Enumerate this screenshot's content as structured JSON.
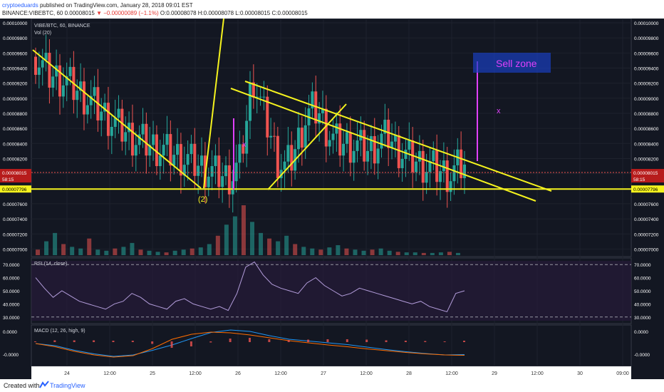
{
  "header": {
    "author": "cryptoeduards",
    "published": "published on TradingView.com, January 28, 2018 09:01 EST",
    "symbol": "BINANCE:VIBEBTC, 60",
    "last": "0.00008015",
    "change": "▼ −0.00000089 (−1.1%)",
    "ohlc": "O:0.00008078 H:0.00008078 L:0.00008015 C:0.00008015"
  },
  "footer": {
    "created": "Created with",
    "brand": "TradingView"
  },
  "colors": {
    "background": "#131722",
    "up": "#26a69a",
    "down": "#ef5350",
    "drawing": "#f5f31e",
    "annotation": "#e040fb",
    "rsi": "#b39ddb",
    "macd": "#2196f3",
    "signal": "#ff6d00",
    "sell_zone_fill": "#1a3fbf"
  },
  "chart_data": [
    {
      "type": "candlestick",
      "title": "VIBE/BTC, 60, BINANCE",
      "y_tick_labels": [
        "0.00010000",
        "0.00009800",
        "0.00009600",
        "0.00009400",
        "0.00009200",
        "0.00009000",
        "0.00008800",
        "0.00008600",
        "0.00008400",
        "0.00008200",
        "0.00008000",
        "0.00007800",
        "0.00007600",
        "0.00007400",
        "0.00007200",
        "0.00007000"
      ],
      "ylim": [
        6.9e-05,
        0.0001
      ],
      "x_tick_labels": [
        "24",
        "12:00",
        "25",
        "12:00",
        "26",
        "12:00",
        "27",
        "12:00",
        "28",
        "12:00",
        "29",
        "12:00",
        "30",
        "09:00"
      ],
      "current_price_label": "0.00008015",
      "countdown_label": "58:15",
      "support_price_label": "0.00007796",
      "support_level": 7.796e-05,
      "annotations": [
        "Sell zone",
        "x",
        "x",
        "(2)"
      ],
      "price_points": [
        [
          0,
          9.55e-05
        ],
        [
          4,
          9.3e-05
        ],
        [
          8,
          9.25e-05
        ],
        [
          12,
          9.1e-05
        ],
        [
          16,
          8.95e-05
        ],
        [
          20,
          8.78e-05
        ],
        [
          24,
          8.62e-05
        ],
        [
          28,
          8.48e-05
        ],
        [
          32,
          8.4e-05
        ],
        [
          36,
          8.32e-05
        ],
        [
          40,
          8.25e-05
        ],
        [
          44,
          8.18e-05
        ],
        [
          48,
          8.08e-05
        ],
        [
          52,
          8e-05
        ],
        [
          55,
          7.95e-05
        ],
        [
          57,
          7.98e-05
        ],
        [
          59,
          8.15e-05
        ],
        [
          61,
          8.7e-05
        ],
        [
          62,
          9.05e-05
        ],
        [
          63,
          9.25e-05
        ],
        [
          64,
          9.1e-05
        ],
        [
          66,
          8.78e-05
        ],
        [
          68,
          8.5e-05
        ],
        [
          70,
          8.18e-05
        ],
        [
          72,
          8.08e-05
        ],
        [
          74,
          8.2e-05
        ],
        [
          76,
          8.45e-05
        ],
        [
          78,
          8.72e-05
        ],
        [
          80,
          8.85e-05
        ],
        [
          82,
          8.8e-05
        ],
        [
          84,
          8.6e-05
        ],
        [
          86,
          8.45e-05
        ],
        [
          88,
          8.4e-05
        ],
        [
          92,
          8.38e-05
        ],
        [
          96,
          8.3e-05
        ],
        [
          100,
          8.45e-05
        ],
        [
          102,
          8.5e-05
        ],
        [
          104,
          8.35e-05
        ],
        [
          108,
          8.2e-05
        ],
        [
          112,
          8.12e-05
        ],
        [
          116,
          8.05e-05
        ],
        [
          120,
          7.98e-05
        ],
        [
          122,
          8.08e-05
        ],
        [
          124,
          8.12e-05
        ]
      ]
    },
    {
      "type": "bar",
      "title": "Vol (20)",
      "values": [
        10,
        25,
        40,
        20,
        15,
        12,
        30,
        10,
        8,
        12,
        15,
        22,
        10,
        8,
        6,
        5,
        8,
        10,
        12,
        14,
        20,
        35,
        55,
        70,
        90,
        60,
        40,
        30,
        25,
        35,
        20,
        15,
        12,
        10,
        14,
        18,
        12,
        10,
        8,
        10,
        12,
        8,
        6,
        5,
        5,
        4,
        4,
        5,
        6,
        4
      ]
    },
    {
      "type": "line",
      "title": "RSI (14, close)",
      "y_tick_labels": [
        "70.0000",
        "60.0000",
        "50.0000",
        "40.0000",
        "30.0000"
      ],
      "ylim": [
        25,
        75
      ],
      "levels": [
        70,
        30
      ],
      "values": [
        60,
        52,
        45,
        50,
        46,
        42,
        40,
        38,
        36,
        40,
        42,
        48,
        45,
        40,
        38,
        36,
        42,
        44,
        40,
        38,
        36,
        38,
        35,
        48,
        68,
        72,
        62,
        55,
        52,
        50,
        48,
        56,
        60,
        54,
        50,
        46,
        48,
        52,
        50,
        48,
        46,
        44,
        42,
        40,
        42,
        38,
        36,
        34,
        48,
        50
      ]
    },
    {
      "type": "line",
      "title": "MACD (12, 26, high, 9)",
      "y_tick_labels": [
        "0.0000",
        "-0.0000"
      ],
      "series": [
        {
          "values": [
            -0.6,
            -1.2,
            -2.5,
            -3.5,
            -4.2,
            -3.8,
            -2.5,
            -1.0,
            0.8,
            2.5,
            3.2,
            2.8,
            1.6,
            0.6,
            0.1,
            -0.4,
            -0.9,
            -1.6,
            -2.3,
            -2.9,
            -3.4,
            -3.8,
            -3.7
          ]
        },
        {
          "values": [
            -0.6,
            -1.5,
            -2.8,
            -3.8,
            -4.4,
            -4.0,
            -2.0,
            0.6,
            2.0,
            2.6,
            2.4,
            1.8,
            1.0,
            0.2,
            -0.4,
            -1.0,
            -1.5,
            -2.1,
            -2.6,
            -3.1,
            -3.5,
            -3.8,
            -3.9
          ]
        }
      ]
    }
  ]
}
